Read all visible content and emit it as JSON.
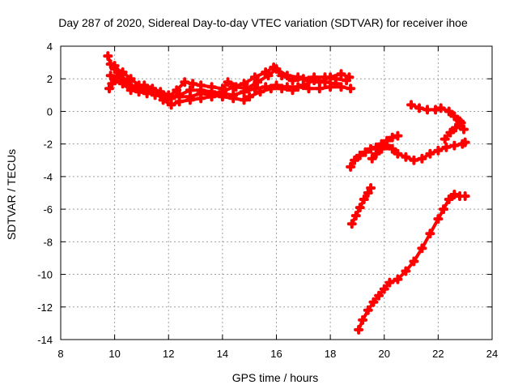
{
  "chart_data": {
    "type": "scatter",
    "title": "Day 287 of 2020, Sidereal Day-to-day VTEC variation (SDTVAR) for receiver ihoe",
    "xlabel": "GPS time / hours",
    "ylabel": "SDTVAR / TECUs",
    "xlim": [
      8,
      24
    ],
    "ylim": [
      -14,
      4
    ],
    "xticks": [
      "8",
      "10",
      "12",
      "14",
      "16",
      "18",
      "20",
      "22",
      "24"
    ],
    "yticks": [
      "4",
      "2",
      "0",
      "-2",
      "-4",
      "-6",
      "-8",
      "-10",
      "-12",
      "-14"
    ],
    "grid": true,
    "marker": "plus",
    "color": "#ff0000",
    "series": [
      {
        "name": "track-1",
        "points": [
          [
            9.75,
            3.4
          ],
          [
            9.85,
            2.9
          ],
          [
            10.0,
            2.6
          ],
          [
            10.2,
            2.2
          ],
          [
            10.4,
            1.8
          ],
          [
            10.6,
            1.5
          ],
          [
            10.9,
            1.4
          ],
          [
            11.2,
            1.2
          ],
          [
            11.5,
            1.0
          ],
          [
            11.8,
            0.9
          ],
          [
            12.1,
            0.8
          ],
          [
            12.4,
            1.0
          ],
          [
            12.8,
            1.3
          ],
          [
            13.2,
            1.3
          ],
          [
            13.6,
            1.2
          ],
          [
            14.0,
            1.1
          ],
          [
            14.4,
            1.0
          ],
          [
            14.8,
            1.2
          ],
          [
            15.2,
            1.4
          ],
          [
            15.6,
            1.5
          ],
          [
            16.0,
            1.6
          ],
          [
            16.4,
            1.5
          ],
          [
            16.8,
            1.5
          ],
          [
            17.2,
            1.4
          ],
          [
            17.6,
            1.4
          ],
          [
            18.0,
            1.5
          ],
          [
            18.4,
            1.5
          ],
          [
            18.75,
            1.4
          ]
        ]
      },
      {
        "name": "track-2",
        "points": [
          [
            9.8,
            1.4
          ],
          [
            9.9,
            1.7
          ],
          [
            10.1,
            2.0
          ],
          [
            10.3,
            1.7
          ],
          [
            10.6,
            1.3
          ],
          [
            10.9,
            1.2
          ],
          [
            11.2,
            1.1
          ],
          [
            11.5,
            1.2
          ],
          [
            11.8,
            0.7
          ],
          [
            12.1,
            0.4
          ],
          [
            12.4,
            0.6
          ],
          [
            12.8,
            0.7
          ],
          [
            13.2,
            0.8
          ],
          [
            13.6,
            0.9
          ],
          [
            14.0,
            1.2
          ],
          [
            14.4,
            1.5
          ],
          [
            14.8,
            1.7
          ],
          [
            15.2,
            2.1
          ],
          [
            15.6,
            2.4
          ],
          [
            15.9,
            2.7
          ],
          [
            16.2,
            2.2
          ],
          [
            16.6,
            1.9
          ],
          [
            17.0,
            2.0
          ],
          [
            17.4,
            2.1
          ],
          [
            17.8,
            2.1
          ],
          [
            18.2,
            2.0
          ],
          [
            18.6,
            1.9
          ]
        ]
      },
      {
        "name": "track-3",
        "points": [
          [
            9.85,
            2.2
          ],
          [
            10.0,
            1.9
          ],
          [
            10.3,
            2.4
          ],
          [
            10.6,
            2.0
          ],
          [
            10.9,
            1.6
          ],
          [
            11.3,
            1.3
          ],
          [
            11.7,
            1.1
          ],
          [
            12.0,
            0.9
          ],
          [
            12.3,
            1.3
          ],
          [
            12.6,
            1.8
          ],
          [
            12.9,
            1.7
          ],
          [
            13.2,
            1.6
          ],
          [
            13.6,
            1.5
          ],
          [
            14.0,
            1.4
          ],
          [
            14.2,
            1.8
          ],
          [
            14.5,
            1.5
          ],
          [
            14.9,
            1.4
          ],
          [
            15.3,
            1.8
          ],
          [
            15.7,
            2.2
          ],
          [
            16.0,
            2.6
          ],
          [
            16.4,
            2.2
          ],
          [
            16.8,
            2.1
          ],
          [
            17.2,
            1.9
          ],
          [
            17.6,
            1.8
          ],
          [
            18.0,
            2.1
          ],
          [
            18.4,
            2.3
          ],
          [
            18.7,
            2.1
          ]
        ]
      },
      {
        "name": "track-4",
        "points": [
          [
            10.0,
            2.8
          ],
          [
            10.2,
            2.3
          ],
          [
            10.5,
            1.7
          ],
          [
            10.8,
            1.5
          ],
          [
            11.1,
            1.6
          ],
          [
            11.4,
            1.4
          ],
          [
            11.7,
            1.2
          ],
          [
            12.0,
            1.0
          ],
          [
            12.4,
            0.9
          ],
          [
            12.8,
            0.9
          ],
          [
            13.2,
            1.1
          ],
          [
            13.6,
            1.0
          ],
          [
            14.0,
            0.9
          ],
          [
            14.4,
            0.8
          ],
          [
            14.8,
            0.7
          ],
          [
            15.0,
            0.9
          ],
          [
            15.4,
            1.2
          ],
          [
            15.8,
            1.4
          ],
          [
            16.2,
            1.4
          ],
          [
            16.6,
            1.3
          ],
          [
            17.0,
            1.6
          ],
          [
            17.4,
            1.9
          ],
          [
            17.8,
            1.8
          ],
          [
            18.2,
            1.7
          ]
        ]
      },
      {
        "name": "track-5",
        "points": [
          [
            18.75,
            -3.4
          ],
          [
            18.9,
            -3.0
          ],
          [
            19.1,
            -2.7
          ],
          [
            19.3,
            -2.5
          ],
          [
            19.5,
            -2.3
          ],
          [
            19.7,
            -2.2
          ],
          [
            19.9,
            -2.0
          ],
          [
            20.1,
            -1.8
          ],
          [
            20.3,
            -1.6
          ],
          [
            20.5,
            -1.5
          ]
        ]
      },
      {
        "name": "track-6",
        "points": [
          [
            19.55,
            -2.9
          ],
          [
            19.7,
            -2.6
          ],
          [
            19.9,
            -2.3
          ],
          [
            20.1,
            -2.1
          ],
          [
            20.3,
            -2.3
          ],
          [
            20.5,
            -2.6
          ],
          [
            20.8,
            -2.8
          ],
          [
            21.1,
            -3.0
          ],
          [
            21.4,
            -2.9
          ],
          [
            21.7,
            -2.6
          ],
          [
            22.0,
            -2.4
          ],
          [
            22.3,
            -2.2
          ],
          [
            22.6,
            -2.1
          ],
          [
            22.9,
            -2.0
          ],
          [
            23.0,
            -1.9
          ]
        ]
      },
      {
        "name": "track-7",
        "points": [
          [
            21.0,
            0.4
          ],
          [
            21.3,
            0.2
          ],
          [
            21.6,
            0.1
          ],
          [
            21.9,
            0.1
          ],
          [
            22.1,
            0.2
          ],
          [
            22.4,
            0.0
          ],
          [
            22.6,
            -0.3
          ],
          [
            22.8,
            -0.6
          ],
          [
            22.95,
            -1.1
          ]
        ]
      },
      {
        "name": "track-8",
        "points": [
          [
            22.25,
            -1.7
          ],
          [
            22.45,
            -1.3
          ],
          [
            22.65,
            -1.0
          ],
          [
            22.85,
            -0.7
          ]
        ]
      },
      {
        "name": "track-9",
        "points": [
          [
            18.8,
            -6.9
          ],
          [
            18.95,
            -6.4
          ],
          [
            19.1,
            -5.9
          ],
          [
            19.25,
            -5.4
          ],
          [
            19.4,
            -5.0
          ],
          [
            19.5,
            -4.7
          ]
        ]
      },
      {
        "name": "track-10",
        "points": [
          [
            19.05,
            -13.4
          ],
          [
            19.2,
            -12.8
          ],
          [
            19.4,
            -12.2
          ],
          [
            19.6,
            -11.7
          ],
          [
            19.8,
            -11.3
          ],
          [
            20.0,
            -10.9
          ],
          [
            20.2,
            -10.5
          ],
          [
            20.5,
            -10.3
          ],
          [
            20.8,
            -9.8
          ],
          [
            21.1,
            -9.2
          ],
          [
            21.4,
            -8.4
          ],
          [
            21.7,
            -7.5
          ],
          [
            22.0,
            -6.6
          ],
          [
            22.2,
            -6.0
          ],
          [
            22.4,
            -5.4
          ],
          [
            22.6,
            -5.1
          ],
          [
            22.8,
            -5.2
          ],
          [
            23.0,
            -5.2
          ]
        ]
      }
    ]
  }
}
